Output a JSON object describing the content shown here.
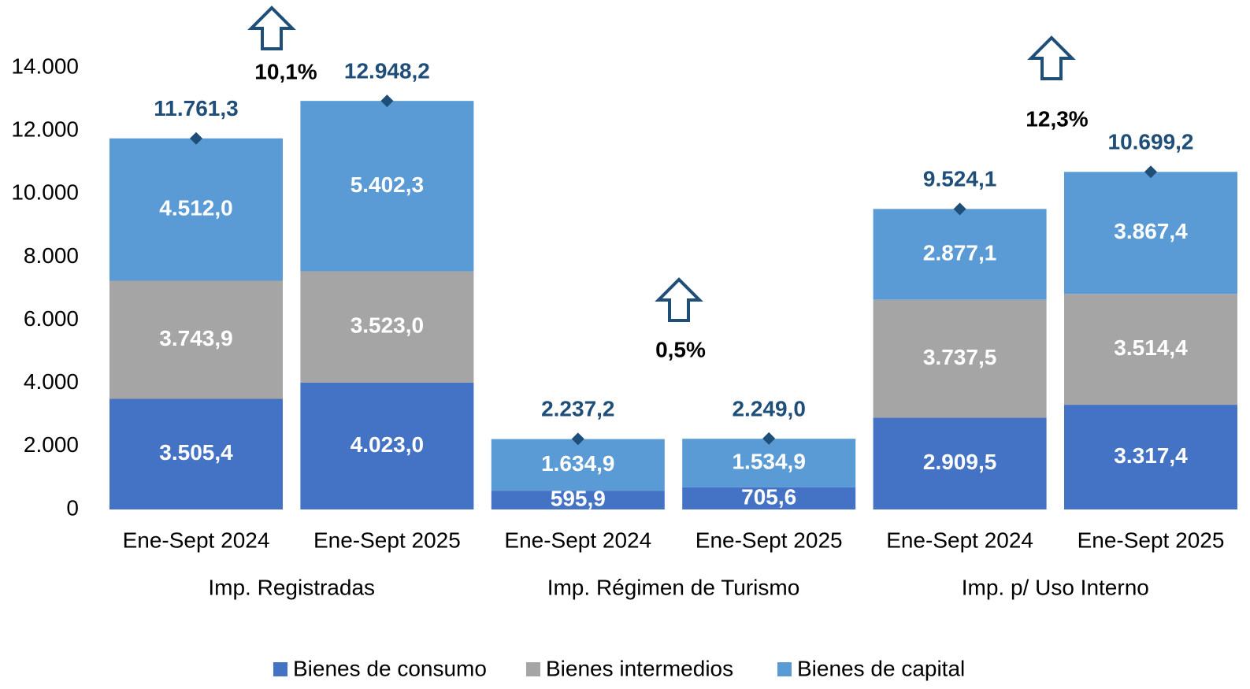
{
  "chart_data": {
    "type": "bar",
    "stacked": true,
    "categories": [
      "Ene-Sept 2024",
      "Ene-Sept 2025",
      "Ene-Sept 2024",
      "Ene-Sept 2025",
      "Ene-Sept 2024",
      "Ene-Sept 2025"
    ],
    "groups": [
      {
        "label": "Imp. Registradas",
        "change": "10,1%"
      },
      {
        "label": "Imp. Régimen de Turismo",
        "change": "0,5%"
      },
      {
        "label": "Imp. p/ Uso Interno",
        "change": "12,3%"
      }
    ],
    "series": [
      {
        "name": "Bienes de consumo",
        "color": "#4472c4",
        "values": [
          3505.4,
          4023.0,
          595.9,
          705.6,
          2909.5,
          3317.4
        ],
        "value_labels": [
          "3.505,4",
          "4.023,0",
          "595,9",
          "705,6",
          "2.909,5",
          "3.317,4"
        ]
      },
      {
        "name": "Bienes intermedios",
        "color": "#a5a5a5",
        "values": [
          3743.9,
          3523.0,
          null,
          null,
          3737.5,
          3514.4
        ],
        "value_labels": [
          "3.743,9",
          "3.523,0",
          null,
          null,
          "3.737,5",
          "3.514,4"
        ]
      },
      {
        "name": "Bienes de capital",
        "color": "#5b9bd5",
        "values": [
          4512.0,
          5402.3,
          1634.9,
          1534.9,
          2877.1,
          3867.4
        ],
        "value_labels": [
          "4.512,0",
          "5.402,3",
          "1.634,9",
          "1.534,9",
          "2.877,1",
          "3.867,4"
        ]
      }
    ],
    "totals": {
      "color": "#1f4e79",
      "values": [
        11761.3,
        12948.2,
        2237.2,
        2249.0,
        9524.1,
        10699.2
      ],
      "value_labels": [
        "11.761,3",
        "12.948,2",
        "2.237,2",
        "2.249,0",
        "9.524,1",
        "10.699,2"
      ]
    },
    "ylim": [
      0,
      14000
    ],
    "yticks": [
      0,
      {
        "value": 2000,
        "label": "2.000"
      },
      {
        "value": 4000,
        "label": "4.000"
      },
      {
        "value": 6000,
        "label": "6.000"
      },
      {
        "value": 8000,
        "label": "8.000"
      },
      {
        "value": 10000,
        "label": "10.000"
      },
      {
        "value": 12000,
        "label": "12.000"
      },
      {
        "value": 14000,
        "label": "14.000"
      }
    ],
    "grid": false,
    "legend": "bottom"
  }
}
